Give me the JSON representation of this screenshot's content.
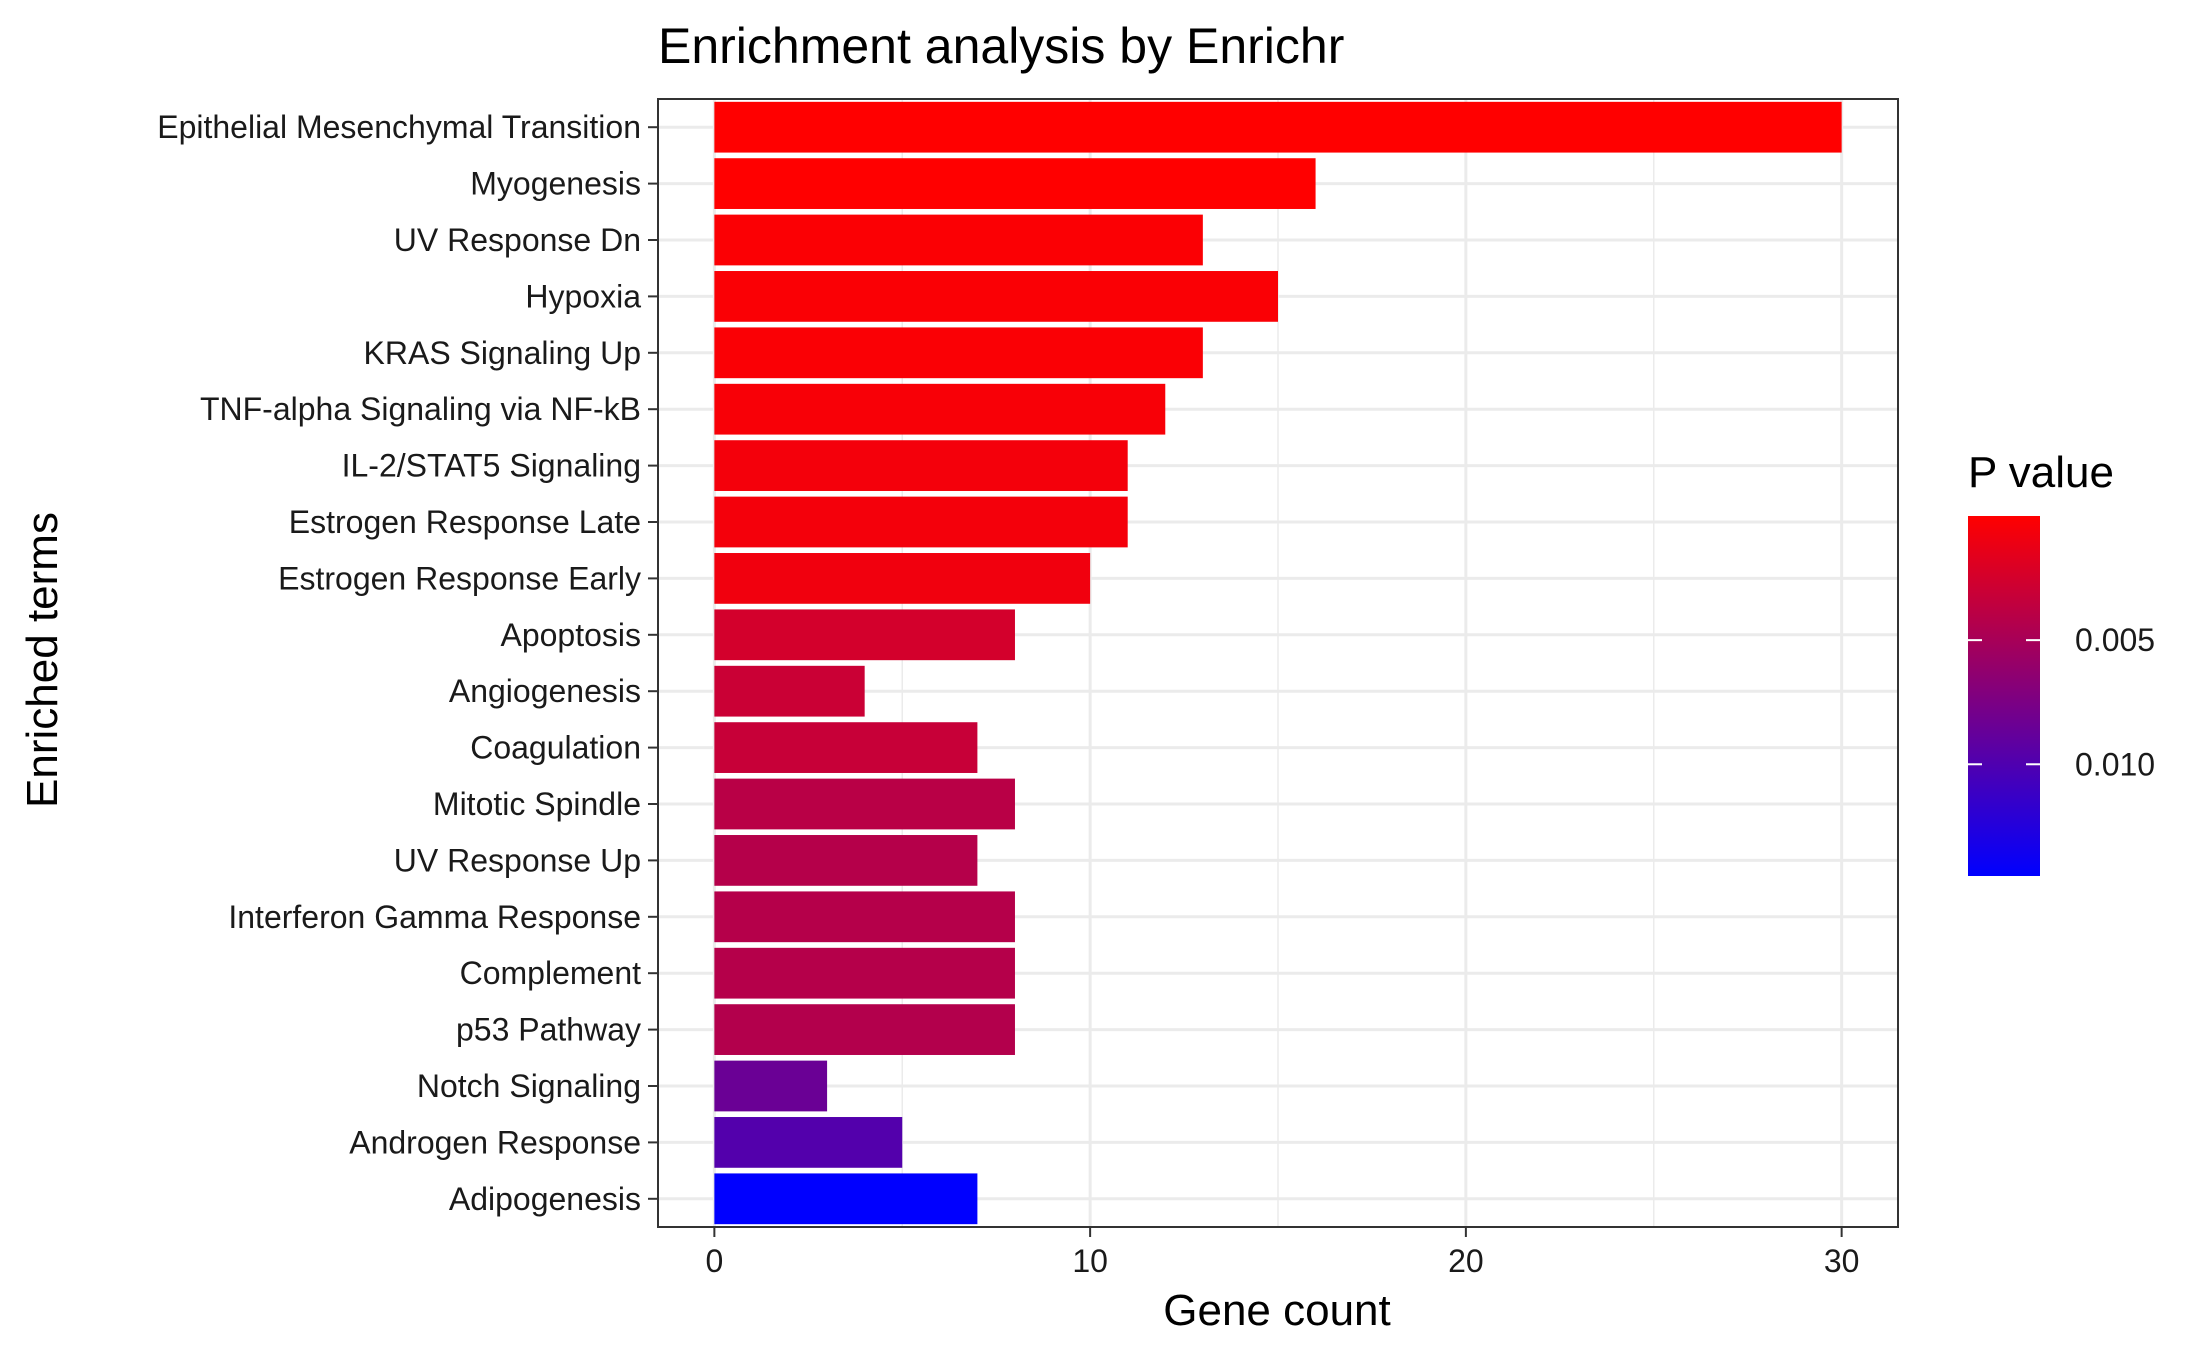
{
  "chart_data": {
    "type": "bar",
    "orientation": "horizontal",
    "title": "Enrichment analysis by Enrichr",
    "xlabel": "Gene count",
    "ylabel": "Enriched terms",
    "xlim": [
      -1.5,
      31.5
    ],
    "xticks": [
      0,
      10,
      20,
      30
    ],
    "grid": true,
    "categories": [
      "Epithelial Mesenchymal Transition",
      "Myogenesis",
      "UV Response Dn",
      "Hypoxia",
      "KRAS Signaling Up",
      "TNF-alpha Signaling via NF-kB",
      "IL-2/STAT5 Signaling",
      "Estrogen Response Late",
      "Estrogen Response Early",
      "Apoptosis",
      "Angiogenesis",
      "Coagulation",
      "Mitotic Spindle",
      "UV Response Up",
      "Interferon Gamma Response",
      "Complement",
      "p53 Pathway",
      "Notch Signaling",
      "Androgen Response",
      "Adipogenesis"
    ],
    "values": [
      30,
      16,
      13,
      15,
      13,
      12,
      11,
      11,
      10,
      8,
      4,
      7,
      8,
      7,
      8,
      8,
      8,
      3,
      5,
      7
    ],
    "p_values": [
      1e-08,
      2e-05,
      0.0002,
      0.0003,
      0.0003,
      0.0004,
      0.0006,
      0.0006,
      0.0008,
      0.0025,
      0.003,
      0.0032,
      0.004,
      0.0042,
      0.0042,
      0.0042,
      0.0043,
      0.0085,
      0.0098,
      0.0145
    ],
    "legend": {
      "title": "P value",
      "placement": "right",
      "low_color": "#FF0000",
      "high_color": "#0000FF",
      "range": [
        0,
        0.0145
      ],
      "ticks": [
        0.005,
        0.01
      ],
      "tick_labels": [
        "0.005",
        "0.010"
      ]
    }
  }
}
